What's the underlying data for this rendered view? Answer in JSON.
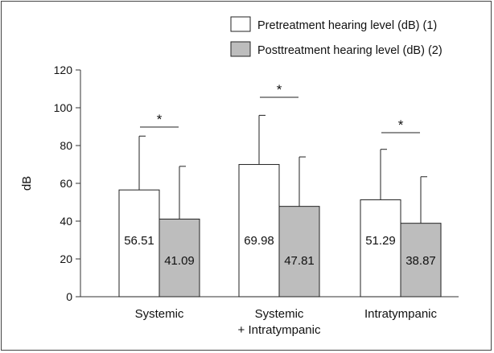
{
  "chart_data": {
    "type": "bar",
    "ylabel": "dB",
    "ylim": [
      0,
      120
    ],
    "yticks": [
      0,
      20,
      40,
      60,
      80,
      100,
      120
    ],
    "grid": false,
    "legend_position": "top-right",
    "categories": [
      "Systemic",
      "Systemic\n+ Intratympanic",
      "Intratympanic"
    ],
    "series": [
      {
        "name": "Pretreatment hearing level (dB) (1)",
        "color": "#ffffff",
        "values": [
          56.51,
          69.98,
          51.29
        ],
        "error_upper": [
          85,
          96,
          78
        ],
        "labels": [
          "56.51",
          "69.98",
          "51.29"
        ]
      },
      {
        "name": "Posttreatment hearing level (dB) (2)",
        "color": "#bdbdbd",
        "values": [
          41.09,
          47.81,
          38.87
        ],
        "error_upper": [
          69,
          74,
          63.5
        ],
        "labels": [
          "41.09",
          "47.81",
          "38.87"
        ]
      }
    ],
    "annotations": [
      {
        "category_index": 0,
        "text": "*"
      },
      {
        "category_index": 1,
        "text": "*"
      },
      {
        "category_index": 2,
        "text": "*"
      }
    ]
  }
}
